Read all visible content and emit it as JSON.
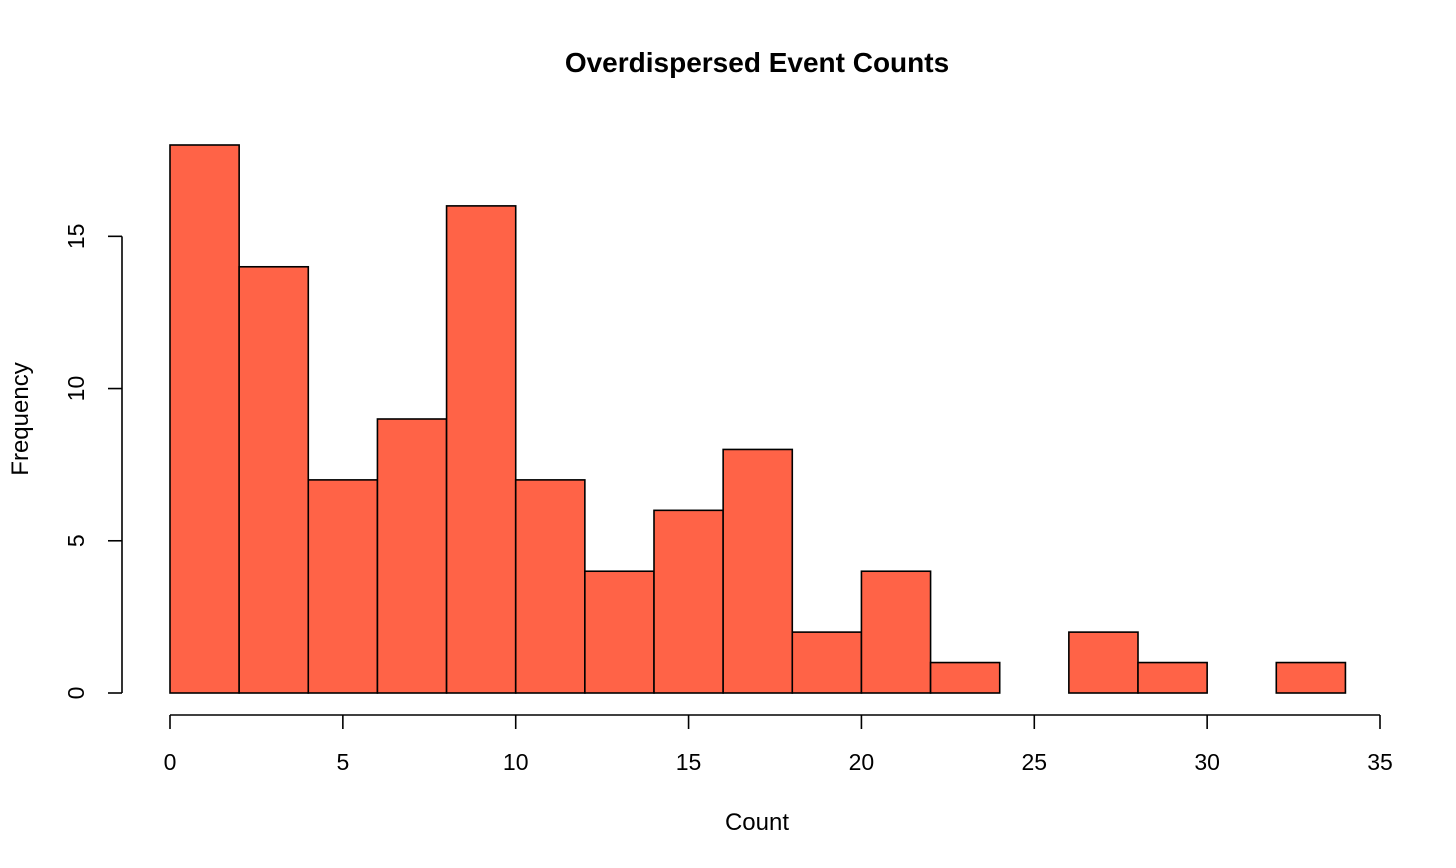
{
  "chart_data": {
    "type": "bar",
    "subtype": "histogram",
    "title": "Overdispersed Event Counts",
    "xlabel": "Count",
    "ylabel": "Frequency",
    "bin_edges": [
      0,
      2,
      4,
      6,
      8,
      10,
      12,
      14,
      16,
      18,
      20,
      22,
      24,
      26,
      28,
      30,
      32,
      34
    ],
    "values": [
      18,
      14,
      7,
      9,
      16,
      7,
      4,
      6,
      8,
      2,
      4,
      1,
      0,
      2,
      1,
      0,
      1
    ],
    "xlim": [
      0,
      35
    ],
    "ylim": [
      0,
      18
    ],
    "x_ticks": [
      0,
      5,
      10,
      15,
      20,
      25,
      30,
      35
    ],
    "y_ticks": [
      0,
      5,
      10,
      15
    ],
    "x_tick_labels": [
      "0",
      "5",
      "10",
      "15",
      "20",
      "25",
      "30",
      "35"
    ],
    "y_tick_labels": [
      "0",
      "5",
      "10",
      "15"
    ],
    "bar_color": "#FF6347",
    "grid": false,
    "legend": "none"
  }
}
